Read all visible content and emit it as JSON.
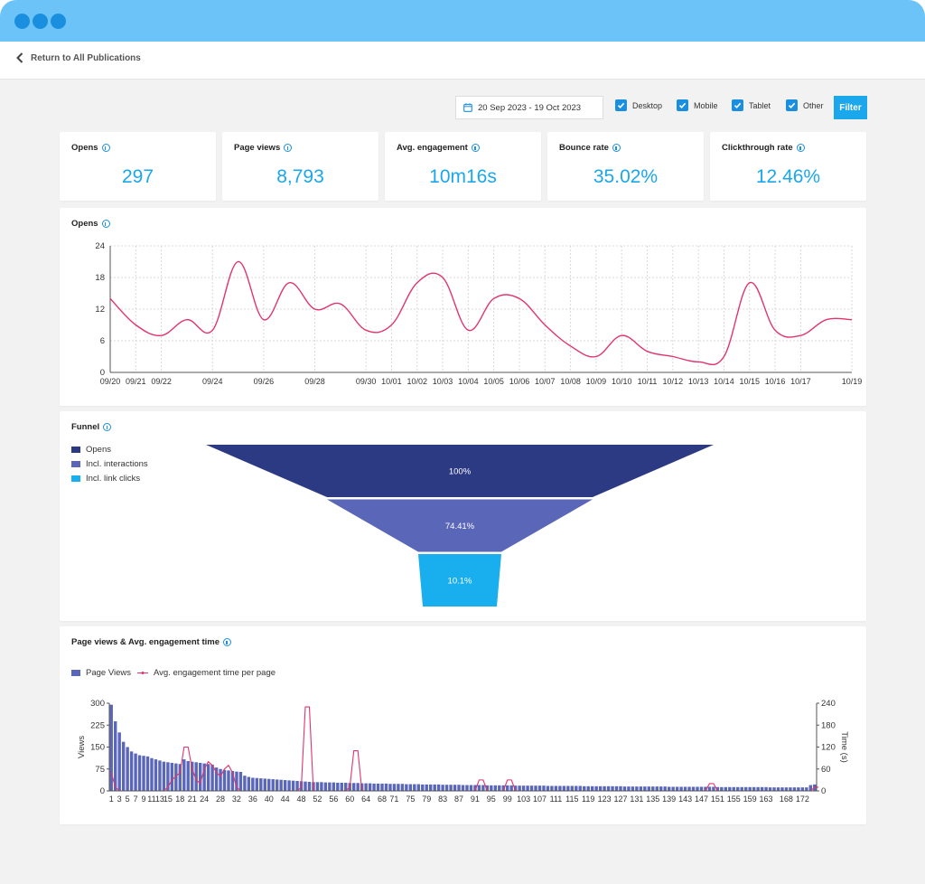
{
  "nav": {
    "back_label": "Return to All Publications"
  },
  "toolbar": {
    "date_range": "20 Sep 2023 - 19 Oct 2023",
    "checkboxes": [
      {
        "label": "Desktop",
        "checked": true
      },
      {
        "label": "Mobile",
        "checked": true
      },
      {
        "label": "Tablet",
        "checked": true
      },
      {
        "label": "Other",
        "checked": true
      }
    ],
    "filter_label": "Filter"
  },
  "kpis": [
    {
      "title": "Opens",
      "value": "297"
    },
    {
      "title": "Page views",
      "value": "8,793"
    },
    {
      "title": "Avg. engagement",
      "value": "10m16s"
    },
    {
      "title": "Bounce rate",
      "value": "35.02%"
    },
    {
      "title": "Clickthrough rate",
      "value": "12.46%"
    }
  ],
  "colors": {
    "accent": "#1aa7ec",
    "line": "#e0356b",
    "funnel_opens": "#2c3a84",
    "funnel_interactions": "#5a66b8",
    "funnel_clicks": "#19aeee",
    "bars": "#5a66b8",
    "titlebar": "#6cc3f7"
  },
  "chart_data": [
    {
      "type": "line",
      "title": "Opens",
      "x": [
        "09/20",
        "09/21",
        "09/22",
        "09/23",
        "09/24",
        "09/25",
        "09/26",
        "09/27",
        "09/28",
        "09/29",
        "09/30",
        "10/01",
        "10/02",
        "10/03",
        "10/04",
        "10/05",
        "10/06",
        "10/07",
        "10/08",
        "10/09",
        "10/10",
        "10/11",
        "10/12",
        "10/13",
        "10/14",
        "10/15",
        "10/16",
        "10/17",
        "10/18",
        "10/19"
      ],
      "x_tick_labels": [
        "09/20",
        "09/21",
        "09/22",
        "09/24",
        "09/26",
        "09/28",
        "09/30",
        "10/01",
        "10/02",
        "10/03",
        "10/04",
        "10/05",
        "10/06",
        "10/07",
        "10/08",
        "10/09",
        "10/10",
        "10/11",
        "10/12",
        "10/13",
        "10/14",
        "10/15",
        "10/16",
        "10/17",
        "10/19"
      ],
      "values": [
        14,
        9,
        7,
        10,
        8,
        21,
        10,
        17,
        12,
        13,
        8,
        9,
        17,
        18,
        8,
        14,
        14,
        9,
        5,
        3,
        7,
        4,
        3,
        2,
        3,
        17,
        8,
        7,
        10,
        10
      ],
      "ylim": [
        0,
        24
      ],
      "y_ticks": [
        0,
        6,
        12,
        18,
        24
      ],
      "grid": true
    },
    {
      "type": "funnel",
      "title": "Funnel",
      "stages": [
        {
          "name": "Opens",
          "label": "100%",
          "value": 100
        },
        {
          "name": "Incl. interactions",
          "label": "74.41%",
          "value": 74.41
        },
        {
          "name": "Incl. link clicks",
          "label": "10.1%",
          "value": 10.1
        }
      ],
      "legend": "left"
    },
    {
      "type": "bar",
      "title": "Page views & Avg. engagement time",
      "series": [
        {
          "name": "Page Views",
          "axis": "left",
          "values": [
            295,
            238,
            200,
            168,
            150,
            135,
            128,
            122,
            120,
            118,
            112,
            108,
            104,
            100,
            98,
            96,
            94,
            92,
            108,
            102,
            100,
            98,
            96,
            94,
            92,
            90,
            80,
            75,
            72,
            70,
            68,
            66,
            65,
            52,
            48,
            45,
            44,
            43,
            42,
            41,
            40,
            39,
            38,
            37,
            36,
            35,
            34,
            33,
            32,
            31,
            30,
            30,
            30,
            29,
            29,
            29,
            28,
            28,
            28,
            27,
            27,
            27,
            26,
            26,
            26,
            25,
            25,
            25,
            25,
            24,
            24,
            24,
            24,
            23,
            23,
            23,
            23,
            22,
            22,
            22,
            22,
            22,
            21,
            21,
            21,
            21,
            21,
            20,
            20,
            20,
            20,
            20,
            20,
            19,
            19,
            19,
            19,
            19,
            19,
            19,
            18,
            18,
            18,
            18,
            18,
            18,
            18,
            18,
            17,
            17,
            17,
            17,
            17,
            17,
            17,
            17,
            17,
            16,
            16,
            16,
            16,
            16,
            16,
            16,
            16,
            16,
            16,
            15,
            15,
            15,
            15,
            15,
            15,
            15,
            15,
            15,
            15,
            15,
            14,
            14,
            14,
            14,
            14,
            14,
            14,
            14,
            14,
            14,
            14,
            14,
            13,
            13,
            13,
            13,
            13,
            13,
            13,
            13,
            13,
            13,
            13,
            13,
            13,
            12,
            12,
            12,
            12,
            12,
            12,
            12,
            12,
            12,
            12,
            20,
            22
          ]
        },
        {
          "name": "Avg. engagement time per page",
          "axis": "right",
          "values": [
            50,
            10,
            0,
            0,
            0,
            0,
            0,
            0,
            0,
            0,
            0,
            0,
            0,
            0,
            10,
            30,
            40,
            50,
            120,
            120,
            60,
            30,
            20,
            60,
            80,
            70,
            50,
            40,
            60,
            70,
            50,
            10,
            0,
            0,
            0,
            0,
            0,
            0,
            0,
            0,
            0,
            0,
            0,
            0,
            0,
            0,
            0,
            10,
            230,
            230,
            0,
            0,
            0,
            0,
            0,
            0,
            0,
            0,
            0,
            10,
            110,
            110,
            0,
            0,
            0,
            0,
            0,
            0,
            0,
            0,
            0,
            0,
            0,
            0,
            0,
            0,
            0,
            0,
            0,
            0,
            0,
            0,
            0,
            0,
            0,
            0,
            0,
            0,
            0,
            0,
            0,
            30,
            30,
            0,
            0,
            0,
            0,
            0,
            30,
            30,
            0,
            0,
            0,
            0,
            0,
            0,
            0,
            0,
            0,
            0,
            0,
            0,
            0,
            0,
            0,
            0,
            0,
            0,
            0,
            0,
            0,
            0,
            0,
            0,
            0,
            0,
            0,
            0,
            0,
            0,
            0,
            0,
            0,
            0,
            0,
            0,
            0,
            0,
            0,
            0,
            0,
            0,
            0,
            0,
            0,
            0,
            0,
            0,
            20,
            20,
            0,
            0,
            0,
            0,
            0,
            0,
            0,
            0,
            0,
            0,
            0,
            0,
            0,
            0,
            0,
            0,
            0,
            0,
            0,
            0,
            0,
            0,
            0,
            0,
            10,
            10
          ]
        }
      ],
      "x_tick_labels": [
        "1",
        "3",
        "5",
        "7",
        "9",
        "11",
        "13",
        "15",
        "18",
        "21",
        "24",
        "28",
        "32",
        "36",
        "40",
        "44",
        "48",
        "52",
        "56",
        "60",
        "64",
        "68",
        "71",
        "75",
        "79",
        "83",
        "87",
        "91",
        "95",
        "99",
        "103",
        "107",
        "111",
        "115",
        "119",
        "123",
        "127",
        "131",
        "135",
        "139",
        "143",
        "147",
        "151",
        "155",
        "159",
        "163",
        "168",
        "172"
      ],
      "ylim_left": [
        0,
        300
      ],
      "y_ticks_left": [
        0,
        75,
        150,
        225,
        300
      ],
      "ylabel_left": "Views",
      "ylim_right": [
        0,
        240
      ],
      "y_ticks_right": [
        0,
        60,
        120,
        180,
        240
      ],
      "ylabel_right": "Time (s)",
      "legend": "top-left"
    }
  ]
}
